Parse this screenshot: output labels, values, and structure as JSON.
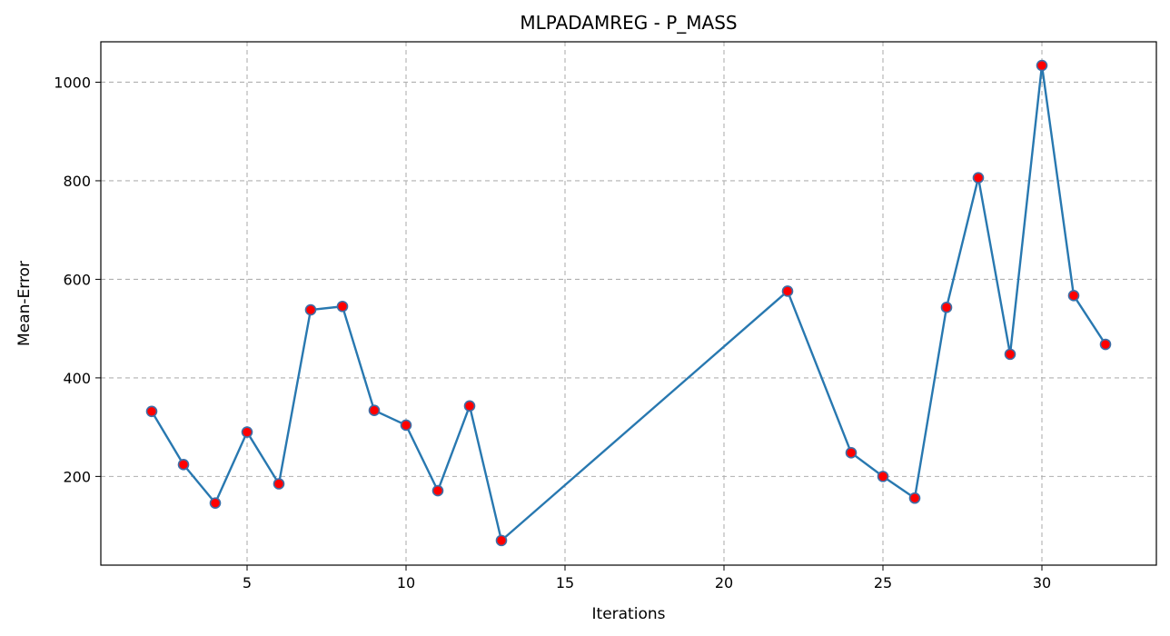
{
  "chart_data": {
    "type": "line",
    "title": "MLPADAMREG - P_MASS",
    "xlabel": "Iterations",
    "ylabel": "Mean-Error",
    "xlim": [
      0.4,
      33.6
    ],
    "ylim": [
      20,
      1082
    ],
    "xticks": [
      5,
      10,
      15,
      20,
      25,
      30
    ],
    "yticks": [
      200,
      400,
      600,
      800,
      1000
    ],
    "grid": true,
    "legend": "none",
    "colors": {
      "line": "#2878b0",
      "marker_face": "#ff0000",
      "marker_edge": "#3d6fa8"
    },
    "series": [
      {
        "x": [
          2,
          3,
          4,
          5,
          6,
          7,
          8,
          9,
          10,
          11,
          12,
          13,
          22,
          24,
          25,
          26,
          27,
          28,
          29,
          30,
          31,
          32
        ],
        "y": [
          332,
          224,
          146,
          290,
          185,
          538,
          545,
          334,
          304,
          171,
          343,
          70,
          576,
          248,
          200,
          156,
          543,
          806,
          448,
          1034,
          567,
          468
        ]
      }
    ]
  }
}
